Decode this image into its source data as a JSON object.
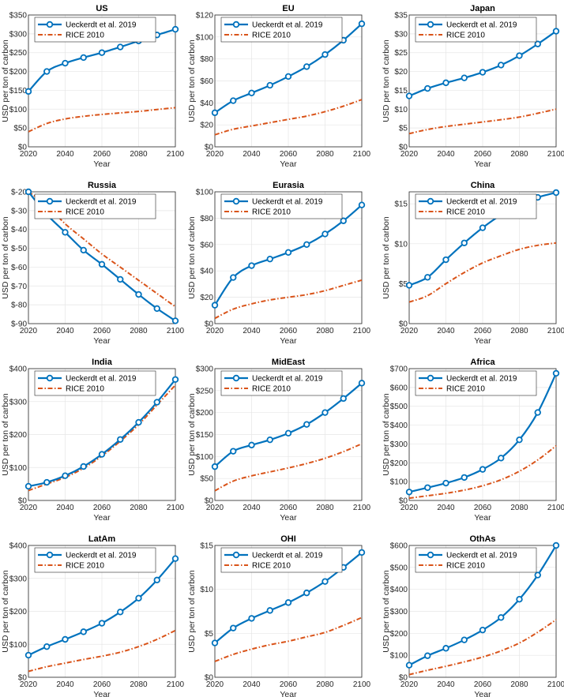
{
  "series_colors": {
    "ueckerdt": "#0072BD",
    "rice": "#D95319"
  },
  "chart_data": [
    {
      "type": "line",
      "title": "US",
      "xlabel": "Year",
      "ylabel": "USD per ton of carbon",
      "xlim": [
        2020,
        2100
      ],
      "ylim": [
        0,
        350
      ],
      "xticks": [
        "2020",
        "2040",
        "2060",
        "2080",
        "2100"
      ],
      "yticks": [
        "$0",
        "$50",
        "$100",
        "$150",
        "$200",
        "$250",
        "$300",
        "$350"
      ],
      "legend": [
        "Ueckerdt et al. 2019",
        "RICE 2010"
      ],
      "x": [
        2020,
        2030,
        2040,
        2050,
        2060,
        2070,
        2080,
        2090,
        2100
      ],
      "series": [
        {
          "name": "Ueckerdt et al. 2019",
          "values": [
            147,
            200,
            222,
            237,
            250,
            265,
            281,
            297,
            312
          ]
        },
        {
          "name": "RICE 2010",
          "values": [
            40,
            62,
            74,
            81,
            86,
            90,
            94,
            99,
            104
          ]
        }
      ]
    },
    {
      "type": "line",
      "title": "EU",
      "xlabel": "Year",
      "ylabel": "USD per ton of carbon",
      "xlim": [
        2020,
        2100
      ],
      "ylim": [
        0,
        120
      ],
      "xticks": [
        "2020",
        "2040",
        "2060",
        "2080",
        "2100"
      ],
      "yticks": [
        "$0",
        "$20",
        "$40",
        "$60",
        "$80",
        "$100",
        "$120"
      ],
      "legend": [
        "Ueckerdt et al. 2019",
        "RICE 2010"
      ],
      "x": [
        2020,
        2030,
        2040,
        2050,
        2060,
        2070,
        2080,
        2090,
        2100
      ],
      "series": [
        {
          "name": "Ueckerdt et al. 2019",
          "values": [
            31,
            42,
            49,
            56,
            64,
            73,
            84,
            97,
            112
          ]
        },
        {
          "name": "RICE 2010",
          "values": [
            11,
            16,
            19,
            22,
            25,
            28,
            32,
            37,
            43
          ]
        }
      ]
    },
    {
      "type": "line",
      "title": "Japan",
      "xlabel": "Year",
      "ylabel": "USD per ton of carbon",
      "xlim": [
        2020,
        2100
      ],
      "ylim": [
        0,
        35
      ],
      "xticks": [
        "2020",
        "2040",
        "2060",
        "2080",
        "2100"
      ],
      "yticks": [
        "$0",
        "$5",
        "$10",
        "$15",
        "$20",
        "$25",
        "$30",
        "$35"
      ],
      "legend": [
        "Ueckerdt et al. 2019",
        "RICE 2010"
      ],
      "x": [
        2020,
        2030,
        2040,
        2050,
        2060,
        2070,
        2080,
        2090,
        2100
      ],
      "series": [
        {
          "name": "Ueckerdt et al. 2019",
          "values": [
            13.5,
            15.5,
            17,
            18.3,
            19.8,
            21.7,
            24.2,
            27.3,
            30.7
          ]
        },
        {
          "name": "RICE 2010",
          "values": [
            3.5,
            4.6,
            5.4,
            6.0,
            6.6,
            7.2,
            7.9,
            8.9,
            10.0
          ]
        }
      ]
    },
    {
      "type": "line",
      "title": "Russia",
      "xlabel": "Year",
      "ylabel": "USD per ton of carbon",
      "xlim": [
        2020,
        2100
      ],
      "ylim": [
        -90,
        -20
      ],
      "xticks": [
        "2020",
        "2040",
        "2060",
        "2080",
        "2100"
      ],
      "yticks": [
        "$-90",
        "$-80",
        "$-70",
        "$-60",
        "$-50",
        "$-40",
        "$-30",
        "$-20"
      ],
      "legend": [
        "Ueckerdt et al. 2019",
        "RICE 2010"
      ],
      "x": [
        2020,
        2030,
        2040,
        2050,
        2060,
        2070,
        2080,
        2090,
        2100
      ],
      "series": [
        {
          "name": "Ueckerdt et al. 2019",
          "values": [
            -20,
            -32,
            -41.5,
            -51,
            -58.5,
            -66.5,
            -74.5,
            -82,
            -88.5
          ]
        },
        {
          "name": "RICE 2010",
          "values": [
            -20,
            -27,
            -37,
            -45,
            -53,
            -60,
            -67,
            -74,
            -81
          ]
        }
      ]
    },
    {
      "type": "line",
      "title": "Eurasia",
      "xlabel": "Year",
      "ylabel": "USD per ton of carbon",
      "xlim": [
        2020,
        2100
      ],
      "ylim": [
        0,
        100
      ],
      "xticks": [
        "2020",
        "2040",
        "2060",
        "2080",
        "2100"
      ],
      "yticks": [
        "$0",
        "$20",
        "$40",
        "$60",
        "$80",
        "$100"
      ],
      "legend": [
        "Ueckerdt et al. 2019",
        "RICE 2010"
      ],
      "x": [
        2020,
        2030,
        2040,
        2050,
        2060,
        2070,
        2080,
        2090,
        2100
      ],
      "series": [
        {
          "name": "Ueckerdt et al. 2019",
          "values": [
            14,
            35,
            44,
            49,
            54,
            60,
            68,
            78,
            90
          ]
        },
        {
          "name": "RICE 2010",
          "values": [
            4,
            11,
            15,
            18,
            20,
            22,
            25,
            29,
            33
          ]
        }
      ]
    },
    {
      "type": "line",
      "title": "China",
      "xlabel": "Year",
      "ylabel": "USD per ton of carbon",
      "xlim": [
        2020,
        2100
      ],
      "ylim": [
        0,
        16.5
      ],
      "xticks": [
        "2020",
        "2040",
        "2060",
        "2080",
        "2100"
      ],
      "yticks": [
        "$0",
        "$5",
        "$10",
        "$15"
      ],
      "legend": [
        "Ueckerdt et al. 2019",
        "RICE 2010"
      ],
      "x": [
        2020,
        2030,
        2040,
        2050,
        2060,
        2070,
        2080,
        2090,
        2100
      ],
      "series": [
        {
          "name": "Ueckerdt et al. 2019",
          "values": [
            4.8,
            5.8,
            8.0,
            10.1,
            12.0,
            13.6,
            14.8,
            15.8,
            16.4
          ]
        },
        {
          "name": "RICE 2010",
          "values": [
            2.7,
            3.5,
            5.0,
            6.4,
            7.6,
            8.5,
            9.3,
            9.8,
            10.1
          ]
        }
      ]
    },
    {
      "type": "line",
      "title": "India",
      "xlabel": "Year",
      "ylabel": "USD per ton of carbon",
      "xlim": [
        2020,
        2100
      ],
      "ylim": [
        0,
        400
      ],
      "xticks": [
        "2020",
        "2040",
        "2060",
        "2080",
        "2100"
      ],
      "yticks": [
        "$0",
        "$100",
        "$200",
        "$300",
        "$400"
      ],
      "legend": [
        "Ueckerdt et al. 2019",
        "RICE 2010"
      ],
      "x": [
        2020,
        2030,
        2040,
        2050,
        2060,
        2070,
        2080,
        2090,
        2100
      ],
      "series": [
        {
          "name": "Ueckerdt et al. 2019",
          "values": [
            43,
            55,
            75,
            103,
            140,
            185,
            237,
            298,
            367
          ]
        },
        {
          "name": "RICE 2010",
          "values": [
            30,
            50,
            70,
            98,
            135,
            180,
            230,
            290,
            350
          ]
        }
      ]
    },
    {
      "type": "line",
      "title": "MidEast",
      "xlabel": "Year",
      "ylabel": "USD per ton of carbon",
      "xlim": [
        2020,
        2100
      ],
      "ylim": [
        0,
        300
      ],
      "xticks": [
        "2020",
        "2040",
        "2060",
        "2080",
        "2100"
      ],
      "yticks": [
        "$0",
        "$50",
        "$100",
        "$150",
        "$200",
        "$250",
        "$300"
      ],
      "legend": [
        "Ueckerdt et al. 2019",
        "RICE 2010"
      ],
      "x": [
        2020,
        2030,
        2040,
        2050,
        2060,
        2070,
        2080,
        2090,
        2100
      ],
      "series": [
        {
          "name": "Ueckerdt et al. 2019",
          "values": [
            77,
            112,
            126,
            138,
            153,
            173,
            200,
            232,
            267
          ]
        },
        {
          "name": "RICE 2010",
          "values": [
            22,
            44,
            56,
            65,
            74,
            84,
            96,
            111,
            129
          ]
        }
      ]
    },
    {
      "type": "line",
      "title": "Africa",
      "xlabel": "Year",
      "ylabel": "USD per ton of carbon",
      "xlim": [
        2020,
        2100
      ],
      "ylim": [
        0,
        700
      ],
      "xticks": [
        "2020",
        "2040",
        "2060",
        "2080",
        "2100"
      ],
      "yticks": [
        "$0",
        "$100",
        "$200",
        "$300",
        "$400",
        "$500",
        "$600",
        "$700"
      ],
      "legend": [
        "Ueckerdt et al. 2019",
        "RICE 2010"
      ],
      "x": [
        2020,
        2030,
        2040,
        2050,
        2060,
        2070,
        2080,
        2090,
        2100
      ],
      "series": [
        {
          "name": "Ueckerdt et al. 2019",
          "values": [
            45,
            68,
            92,
            122,
            165,
            225,
            322,
            467,
            675
          ]
        },
        {
          "name": "RICE 2010",
          "values": [
            12,
            25,
            38,
            55,
            78,
            110,
            155,
            215,
            290
          ]
        }
      ]
    },
    {
      "type": "line",
      "title": "LatAm",
      "xlabel": "Year",
      "ylabel": "USD per ton of carbon",
      "xlim": [
        2020,
        2100
      ],
      "ylim": [
        0,
        400
      ],
      "xticks": [
        "2020",
        "2040",
        "2060",
        "2080",
        "2100"
      ],
      "yticks": [
        "$0",
        "$100",
        "$200",
        "$300",
        "$400"
      ],
      "legend": [
        "Ueckerdt et al. 2019",
        "RICE 2010"
      ],
      "x": [
        2020,
        2030,
        2040,
        2050,
        2060,
        2070,
        2080,
        2090,
        2100
      ],
      "series": [
        {
          "name": "Ueckerdt et al. 2019",
          "values": [
            67,
            93,
            115,
            138,
            164,
            198,
            240,
            295,
            360
          ]
        },
        {
          "name": "RICE 2010",
          "values": [
            18,
            32,
            43,
            54,
            64,
            76,
            93,
            115,
            142
          ]
        }
      ]
    },
    {
      "type": "line",
      "title": "OHI",
      "xlabel": "Year",
      "ylabel": "USD per ton of carbon",
      "xlim": [
        2020,
        2100
      ],
      "ylim": [
        0,
        15
      ],
      "xticks": [
        "2020",
        "2040",
        "2060",
        "2080",
        "2100"
      ],
      "yticks": [
        "$0",
        "$5",
        "$10",
        "$15"
      ],
      "legend": [
        "Ueckerdt et al. 2019",
        "RICE 2010"
      ],
      "x": [
        2020,
        2030,
        2040,
        2050,
        2060,
        2070,
        2080,
        2090,
        2100
      ],
      "series": [
        {
          "name": "Ueckerdt et al. 2019",
          "values": [
            3.9,
            5.6,
            6.7,
            7.6,
            8.5,
            9.6,
            10.9,
            12.5,
            14.2
          ]
        },
        {
          "name": "RICE 2010",
          "values": [
            1.8,
            2.6,
            3.2,
            3.7,
            4.1,
            4.6,
            5.1,
            5.9,
            6.8
          ]
        }
      ]
    },
    {
      "type": "line",
      "title": "OthAs",
      "xlabel": "Year",
      "ylabel": "USD per ton of carbon",
      "xlim": [
        2020,
        2100
      ],
      "ylim": [
        0,
        600
      ],
      "xticks": [
        "2020",
        "2040",
        "2060",
        "2080",
        "2100"
      ],
      "yticks": [
        "$0",
        "$100",
        "$200",
        "$300",
        "$400",
        "$500",
        "$600"
      ],
      "legend": [
        "Ueckerdt et al. 2019",
        "RICE 2010"
      ],
      "x": [
        2020,
        2030,
        2040,
        2050,
        2060,
        2070,
        2080,
        2090,
        2100
      ],
      "series": [
        {
          "name": "Ueckerdt et al. 2019",
          "values": [
            55,
            98,
            132,
            170,
            215,
            272,
            355,
            465,
            600
          ]
        },
        {
          "name": "RICE 2010",
          "values": [
            12,
            32,
            50,
            70,
            92,
            120,
            156,
            205,
            262
          ]
        }
      ]
    }
  ]
}
